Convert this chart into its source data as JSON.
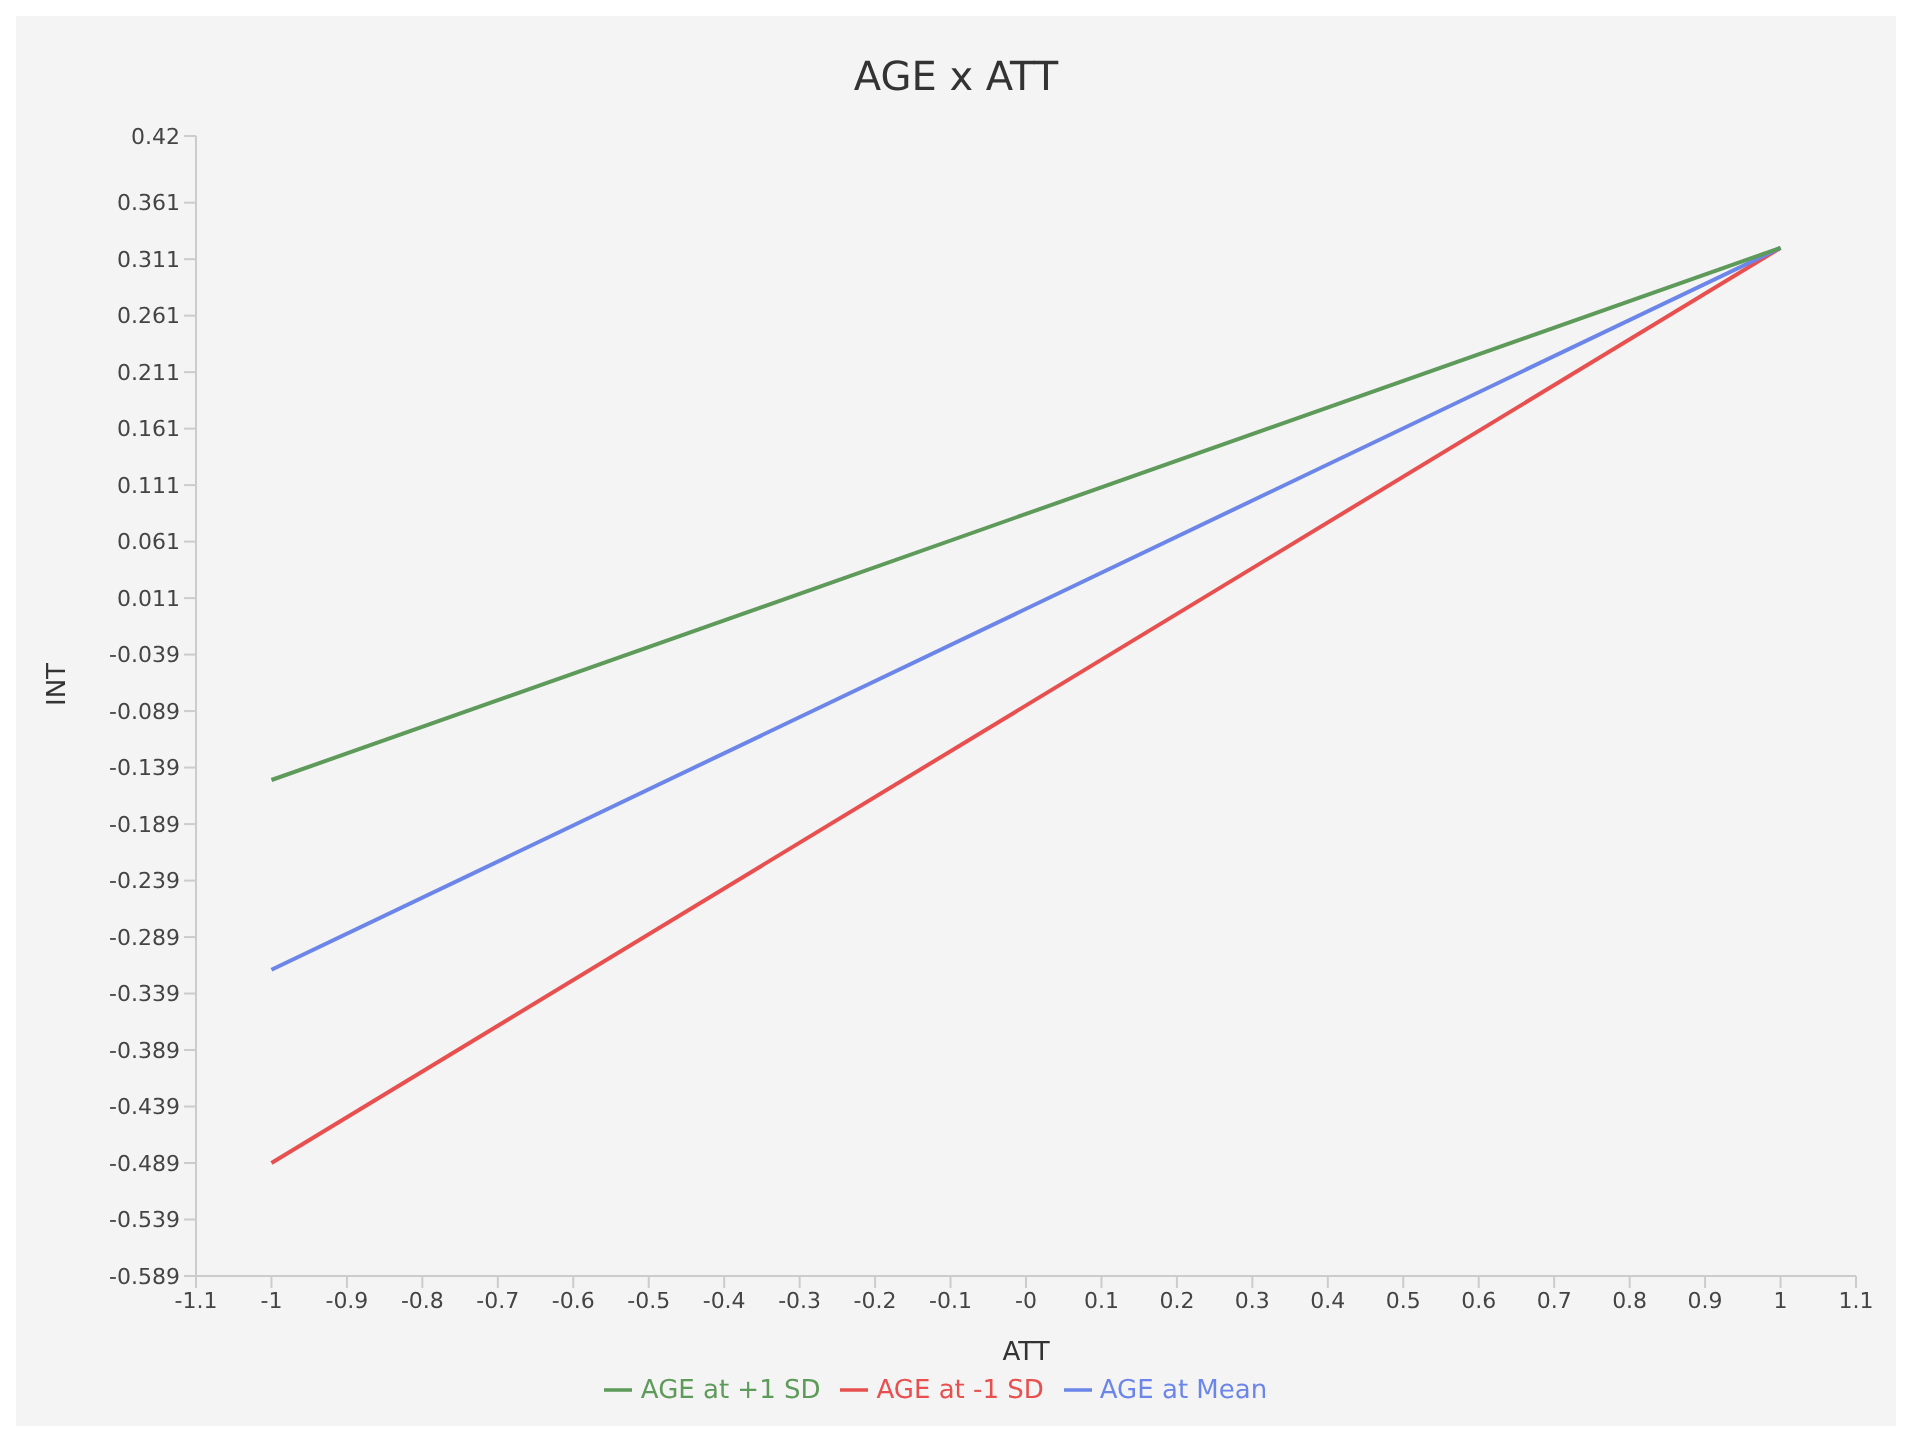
{
  "chart_data": {
    "type": "line",
    "title": "AGE x ATT",
    "xlabel": "ATT",
    "ylabel": "INT",
    "x": [
      -1,
      1
    ],
    "series": [
      {
        "name": "AGE at -1 SD",
        "color": "#e8504f",
        "values": [
          -0.489,
          0.321
        ]
      },
      {
        "name": "AGE at Mean",
        "color": "#6b86e8",
        "values": [
          -0.318,
          0.321
        ]
      },
      {
        "name": "AGE at +1 SD",
        "color": "#5e9a5a",
        "values": [
          -0.15,
          0.321
        ]
      }
    ],
    "xlim": [
      -1.1,
      1.1
    ],
    "xticks": [
      -1.1,
      -1,
      -0.9,
      -0.8,
      -0.7,
      -0.6,
      -0.5,
      -0.4,
      -0.3,
      -0.2,
      -0.1,
      {
        "value": 0,
        "label": "-0"
      },
      0.1,
      0.2,
      0.3,
      0.4,
      0.5,
      0.6,
      0.7,
      0.8,
      0.9,
      1,
      1.1
    ],
    "ylim": [
      -0.589,
      0.42
    ],
    "yticks": [
      -0.589,
      -0.539,
      -0.489,
      -0.439,
      -0.389,
      -0.339,
      -0.289,
      -0.239,
      -0.189,
      -0.139,
      -0.089,
      -0.039,
      0.011,
      0.061,
      0.111,
      0.161,
      0.211,
      0.261,
      0.311,
      0.361,
      0.42
    ],
    "grid": false,
    "legend": "bottom",
    "marker": "none",
    "line_style": "solid"
  }
}
